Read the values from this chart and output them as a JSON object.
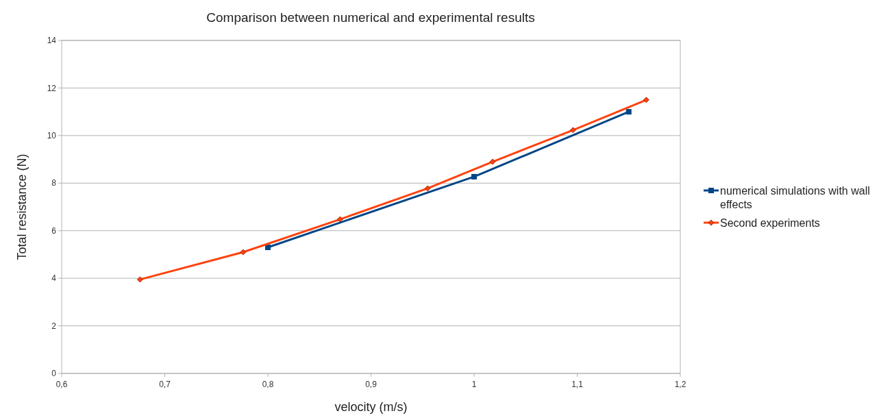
{
  "chart_data": {
    "type": "line",
    "title": "Comparison between numerical and experimental results",
    "xlabel": "velocity (m/s)",
    "ylabel": "Total resistance (N)",
    "xlim": [
      0.6,
      1.2
    ],
    "xticks": [
      {
        "value": 0.6,
        "label": "0,6"
      },
      {
        "value": 0.7,
        "label": "0,7"
      },
      {
        "value": 0.8,
        "label": "0,8"
      },
      {
        "value": 0.9,
        "label": "0,9"
      },
      {
        "value": 1,
        "label": "1"
      },
      {
        "value": 1.1,
        "label": "1,1"
      },
      {
        "value": 1.2,
        "label": "1,2"
      }
    ],
    "ylim": [
      0,
      14
    ],
    "yticks": [
      0,
      2,
      4,
      6,
      8,
      10,
      12,
      14
    ],
    "grid": "y",
    "legend": "right",
    "series": [
      {
        "name": "numerical simulations with wall effects",
        "color": "#004586",
        "marker": "square",
        "x": [
          0.8,
          1.0,
          1.15
        ],
        "values": [
          5.3,
          8.27,
          11.0
        ]
      },
      {
        "name": "Second experiments",
        "color": "#ff420e",
        "marker": "diamond",
        "x": [
          0.676,
          0.776,
          0.87,
          0.955,
          1.018,
          1.096,
          1.167
        ],
        "values": [
          3.95,
          5.1,
          6.48,
          7.78,
          8.9,
          10.23,
          11.5
        ]
      }
    ]
  }
}
